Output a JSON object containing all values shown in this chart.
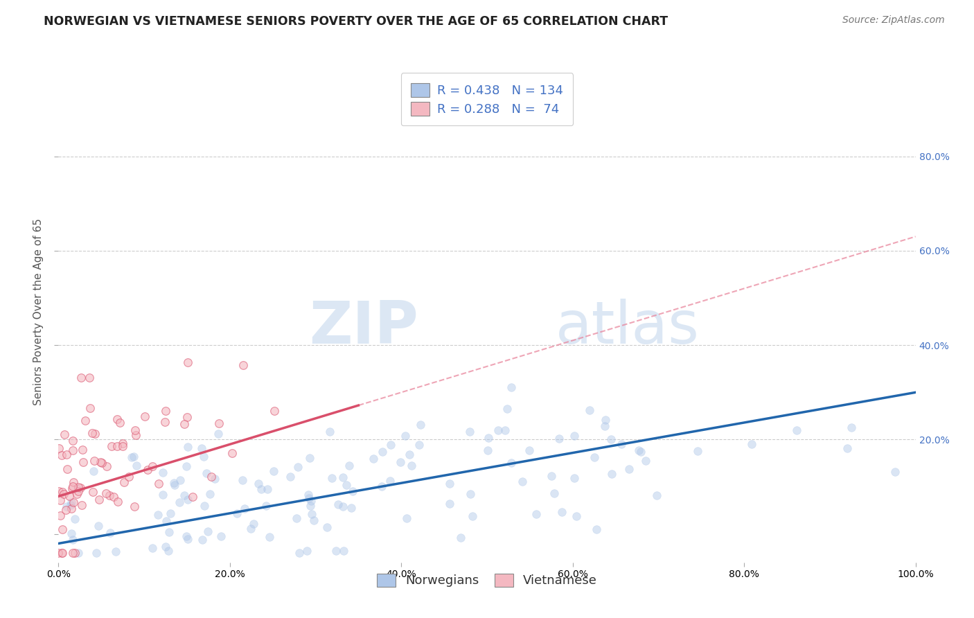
{
  "title": "NORWEGIAN VS VIETNAMESE SENIORS POVERTY OVER THE AGE OF 65 CORRELATION CHART",
  "source": "Source: ZipAtlas.com",
  "ylabel": "Seniors Poverty Over the Age of 65",
  "legend_entries": [
    {
      "label": "Norwegians",
      "R": 0.438,
      "N": 134,
      "color": "#aec6e8",
      "line_color": "#2166ac"
    },
    {
      "label": "Vietnamese",
      "R": 0.288,
      "N": 74,
      "color": "#f4b8c1",
      "line_color": "#d94f6b"
    }
  ],
  "watermark_zip": "ZIP",
  "watermark_atlas": "atlas",
  "xlim": [
    0.0,
    1.0
  ],
  "ylim": [
    -0.06,
    1.0
  ],
  "background_color": "#ffffff",
  "grid_color": "#cccccc",
  "title_color": "#222222",
  "title_fontsize": 12.5,
  "source_fontsize": 10,
  "axis_label_fontsize": 11,
  "tick_fontsize": 10,
  "legend_fontsize": 13,
  "dot_size": 70,
  "nor_alpha": 0.45,
  "vie_alpha": 0.6,
  "nor_seed": 7,
  "vie_seed": 13,
  "nor_N": 134,
  "vie_N": 74,
  "nor_R": 0.438,
  "vie_R": 0.288
}
